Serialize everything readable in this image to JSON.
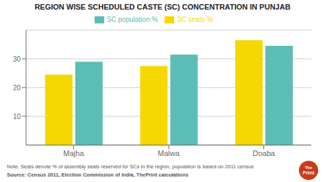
{
  "chart_data": {
    "type": "bar",
    "title": "REGION WISE SCHEDULED CASTE (SC) CONCENTRATION IN PUNJAB",
    "categories": [
      "Majha",
      "Malwa",
      "Doaba"
    ],
    "series": [
      {
        "name": "SC seats %",
        "color": "#F5D800",
        "values": [
          24.5,
          27.5,
          36.5
        ]
      },
      {
        "name": "SC population %",
        "color": "#5BBDB5",
        "values": [
          29.0,
          31.5,
          34.5
        ]
      }
    ],
    "ylim": [
      0,
      40
    ],
    "yticks": [
      10,
      20,
      30
    ],
    "grid": true,
    "legend": "top",
    "note": "Note: Seats denote % of assembly seats reserved for SCs in the region, population is based on 2011 census",
    "source": "Source: Census 2011, Election Commission of India, ThePrint calculations",
    "annotations": [
      "The",
      "Print"
    ]
  }
}
